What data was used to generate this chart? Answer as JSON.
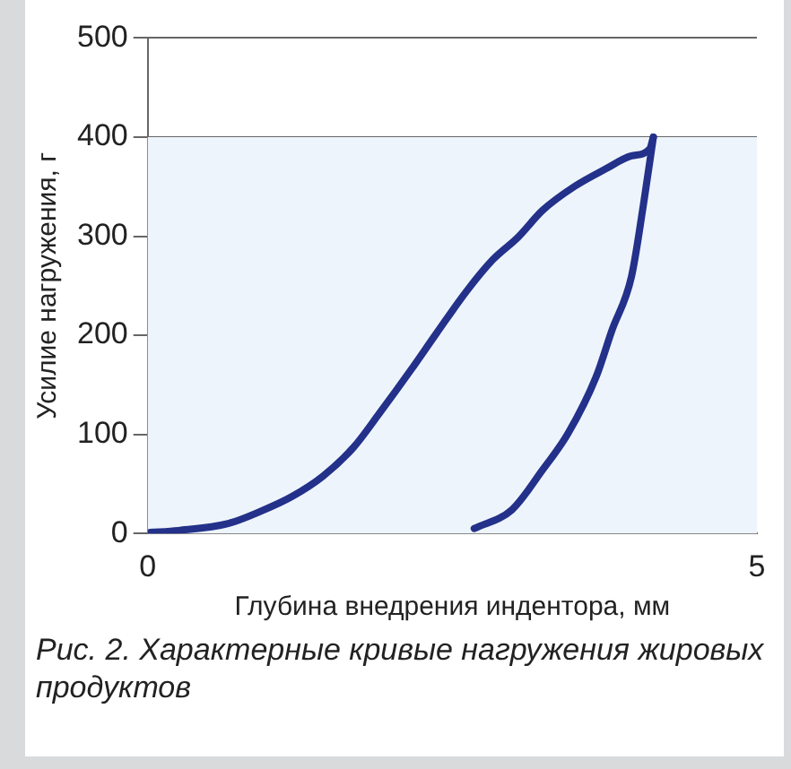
{
  "chart_data": {
    "type": "line",
    "xlabel": "Глубина внедрения индентора, мм",
    "ylabel": "Усилие нагружения, г",
    "annotations": [
      "Рис. 2. Характерные кривые нагружения жировых продуктов"
    ],
    "xlim": [
      0,
      5
    ],
    "xticks": [
      0,
      5
    ],
    "ylim": [
      0,
      500
    ],
    "yticks": [
      0,
      100,
      200,
      300,
      400,
      500
    ],
    "grid": "y",
    "legend": false,
    "marker": "none",
    "line_style": "solid",
    "bands": [
      {
        "axis": "y",
        "from": 0,
        "to": 400,
        "color": "#eef4fb"
      }
    ],
    "series": [
      {
        "color": "#23318a",
        "x": [
          0.02,
          0.25,
          0.66,
          0.92,
          1.18,
          1.44,
          1.69,
          1.9,
          2.16,
          2.37,
          2.62,
          2.83,
          3.04,
          3.24,
          3.5,
          3.76,
          3.97,
          4.12,
          4.15
        ],
        "values": [
          1,
          3,
          10,
          22,
          37,
          58,
          87,
          121,
          165,
          202,
          245,
          276,
          299,
          326,
          350,
          368,
          381,
          388,
          400
        ]
      },
      {
        "color": "#23318a",
        "x": [
          4.15,
          4.07,
          3.97,
          3.81,
          3.68,
          3.45,
          3.24,
          2.99,
          2.68
        ],
        "values": [
          400,
          333,
          259,
          205,
          158,
          101,
          64,
          24,
          5
        ]
      }
    ]
  }
}
